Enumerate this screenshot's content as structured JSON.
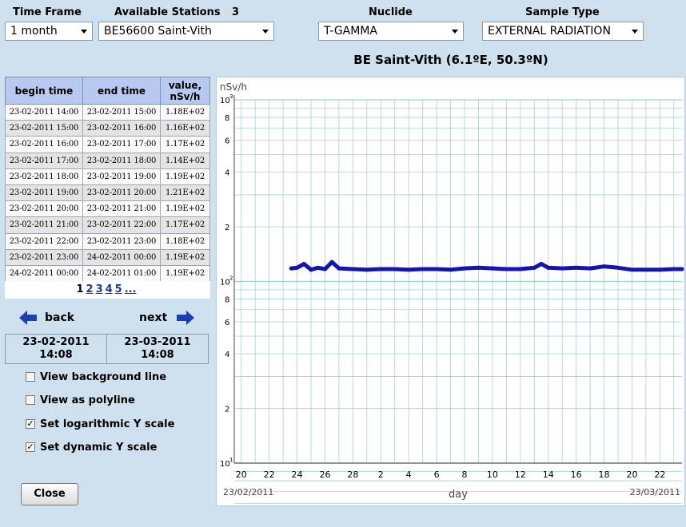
{
  "filters": {
    "time_frame_label": "Time Frame",
    "time_frame_value": "1 month",
    "stations_label": "Available Stations",
    "stations_count": "3",
    "station_value": "BE56600 Saint-Vith",
    "nuclide_label": "Nuclide",
    "nuclide_value": "T-GAMMA",
    "sample_type_label": "Sample Type",
    "sample_type_value": "EXTERNAL RADIATION"
  },
  "chart_title": "BE Saint-Vith (6.1ºE, 50.3ºN)",
  "table": {
    "headers": [
      "begin time",
      "end time",
      "value, nSv/h"
    ],
    "rows": [
      [
        "23-02-2011 14:00",
        "23-02-2011 15:00",
        "1.18E+02"
      ],
      [
        "23-02-2011 15:00",
        "23-02-2011 16:00",
        "1.16E+02"
      ],
      [
        "23-02-2011 16:00",
        "23-02-2011 17:00",
        "1.17E+02"
      ],
      [
        "23-02-2011 17:00",
        "23-02-2011 18:00",
        "1.14E+02"
      ],
      [
        "23-02-2011 18:00",
        "23-02-2011 19:00",
        "1.19E+02"
      ],
      [
        "23-02-2011 19:00",
        "23-02-2011 20:00",
        "1.21E+02"
      ],
      [
        "23-02-2011 20:00",
        "23-02-2011 21:00",
        "1.19E+02"
      ],
      [
        "23-02-2011 21:00",
        "23-02-2011 22:00",
        "1.17E+02"
      ],
      [
        "23-02-2011 22:00",
        "23-02-2011 23:00",
        "1.18E+02"
      ],
      [
        "23-02-2011 23:00",
        "24-02-2011 00:00",
        "1.19E+02"
      ],
      [
        "24-02-2011 00:00",
        "24-02-2011 01:00",
        "1.19E+02"
      ]
    ]
  },
  "pager": {
    "current": "1",
    "pages": [
      "2",
      "3",
      "4",
      "5",
      "..."
    ]
  },
  "nav": {
    "back_label": "back",
    "next_label": "next"
  },
  "range": {
    "start_date": "23-02-2011",
    "start_time": "14:08",
    "end_date": "23-03-2011",
    "end_time": "14:08"
  },
  "options": [
    {
      "label": "View background line",
      "checked": false
    },
    {
      "label": "View as polyline",
      "checked": false
    },
    {
      "label": "Set logarithmic Y scale",
      "checked": true
    },
    {
      "label": "Set dynamic Y scale",
      "checked": true
    }
  ],
  "close_label": "Close",
  "colors": {
    "series": "#1414b4",
    "grid": "#9fd2d8",
    "header_bg": "#b8c8f0",
    "page_bg": "#cfe0ef",
    "arrow": "#1b3fb0"
  },
  "chart_data": {
    "type": "line",
    "ylabel": "nSv/h",
    "xlabel": "day",
    "y_scale": "log",
    "ylim": [
      10,
      1000
    ],
    "xlim": [
      "2011-02-19 12:00",
      "2011-03-23 14:00"
    ],
    "x_tick_labels": [
      "20",
      "22",
      "24",
      "26",
      "28",
      "2",
      "4",
      "6",
      "8",
      "10",
      "12",
      "14",
      "16",
      "18",
      "20",
      "22"
    ],
    "x_tick_dates": [
      "2011-02-20",
      "2011-02-22",
      "2011-02-24",
      "2011-02-26",
      "2011-02-28",
      "2011-03-02",
      "2011-03-04",
      "2011-03-06",
      "2011-03-08",
      "2011-03-10",
      "2011-03-12",
      "2011-03-14",
      "2011-03-16",
      "2011-03-18",
      "2011-03-20",
      "2011-03-22"
    ],
    "y_minor_labels": [
      "8",
      "6",
      "4",
      "2"
    ],
    "x_start_label": "23/02/2011",
    "x_end_label": "23/03/2011",
    "grid": true,
    "series": [
      {
        "x": [
          "2011-02-23 14:00",
          "2011-02-24 00:00",
          "2011-02-24 12:00",
          "2011-02-25 00:00",
          "2011-02-25 12:00",
          "2011-02-26 00:00",
          "2011-02-26 12:00",
          "2011-02-27 00:00",
          "2011-02-28 00:00",
          "2011-03-01 00:00",
          "2011-03-02 00:00",
          "2011-03-03 00:00",
          "2011-03-04 00:00",
          "2011-03-05 00:00",
          "2011-03-06 00:00",
          "2011-03-07 00:00",
          "2011-03-08 00:00",
          "2011-03-09 00:00",
          "2011-03-10 00:00",
          "2011-03-11 00:00",
          "2011-03-12 00:00",
          "2011-03-12 12:00",
          "2011-03-13 00:00",
          "2011-03-13 12:00",
          "2011-03-14 00:00",
          "2011-03-15 00:00",
          "2011-03-16 00:00",
          "2011-03-17 00:00",
          "2011-03-18 00:00",
          "2011-03-19 00:00",
          "2011-03-20 00:00",
          "2011-03-21 00:00",
          "2011-03-22 00:00",
          "2011-03-23 00:00",
          "2011-03-23 14:00"
        ],
        "y": [
          118,
          119,
          125,
          116,
          119,
          117,
          128,
          118,
          117,
          116,
          117,
          117,
          116,
          117,
          117,
          116,
          118,
          119,
          118,
          117,
          117,
          118,
          119,
          125,
          119,
          118,
          119,
          118,
          121,
          119,
          116,
          116,
          116,
          117,
          117
        ]
      }
    ]
  }
}
